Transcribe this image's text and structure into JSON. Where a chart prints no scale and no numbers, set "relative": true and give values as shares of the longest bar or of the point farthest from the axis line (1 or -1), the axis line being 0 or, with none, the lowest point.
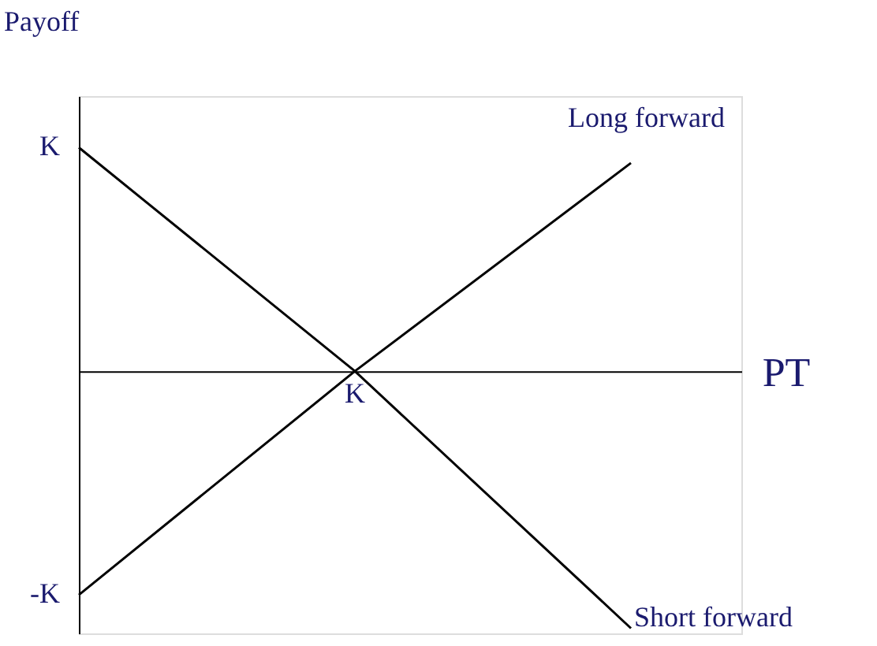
{
  "chart_data": {
    "type": "line",
    "relative": true,
    "ylabel": "Payoff",
    "xlabel": "PT",
    "categories": [
      null,
      null,
      null
    ],
    "series": [
      {
        "name": "Long forward",
        "color": "#000000",
        "values": [
          -0.87,
          0,
          0.81
        ]
      },
      {
        "name": "Short forward",
        "color": "#000000",
        "values": [
          0.87,
          0,
          -1
        ]
      }
    ],
    "annotations": [
      "K",
      "-K",
      {
        "text": "K",
        "y": 0
      }
    ],
    "grid": false,
    "legend": false,
    "marker": "none",
    "line_style": "solid"
  }
}
